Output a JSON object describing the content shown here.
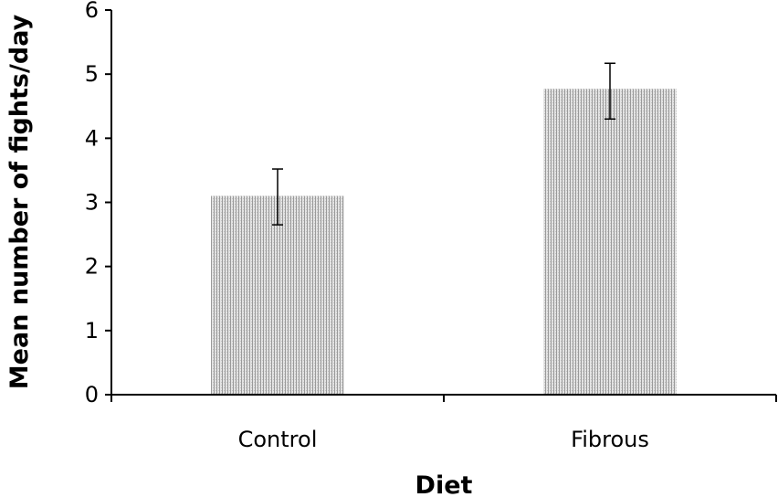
{
  "chart_data": {
    "type": "bar",
    "title": "",
    "xlabel": "Diet",
    "ylabel": "Mean number of fights/day",
    "categories": [
      "Control",
      "Fibrous"
    ],
    "values": [
      3.1,
      4.77
    ],
    "error_low": [
      2.65,
      4.3
    ],
    "error_high": [
      3.52,
      5.17
    ],
    "ylim": [
      0,
      6
    ],
    "yticks": [
      "0",
      "1",
      "2",
      "3",
      "4",
      "5",
      "6"
    ],
    "grid": false,
    "legend": "none",
    "bar_color": "#b8b8b8"
  }
}
